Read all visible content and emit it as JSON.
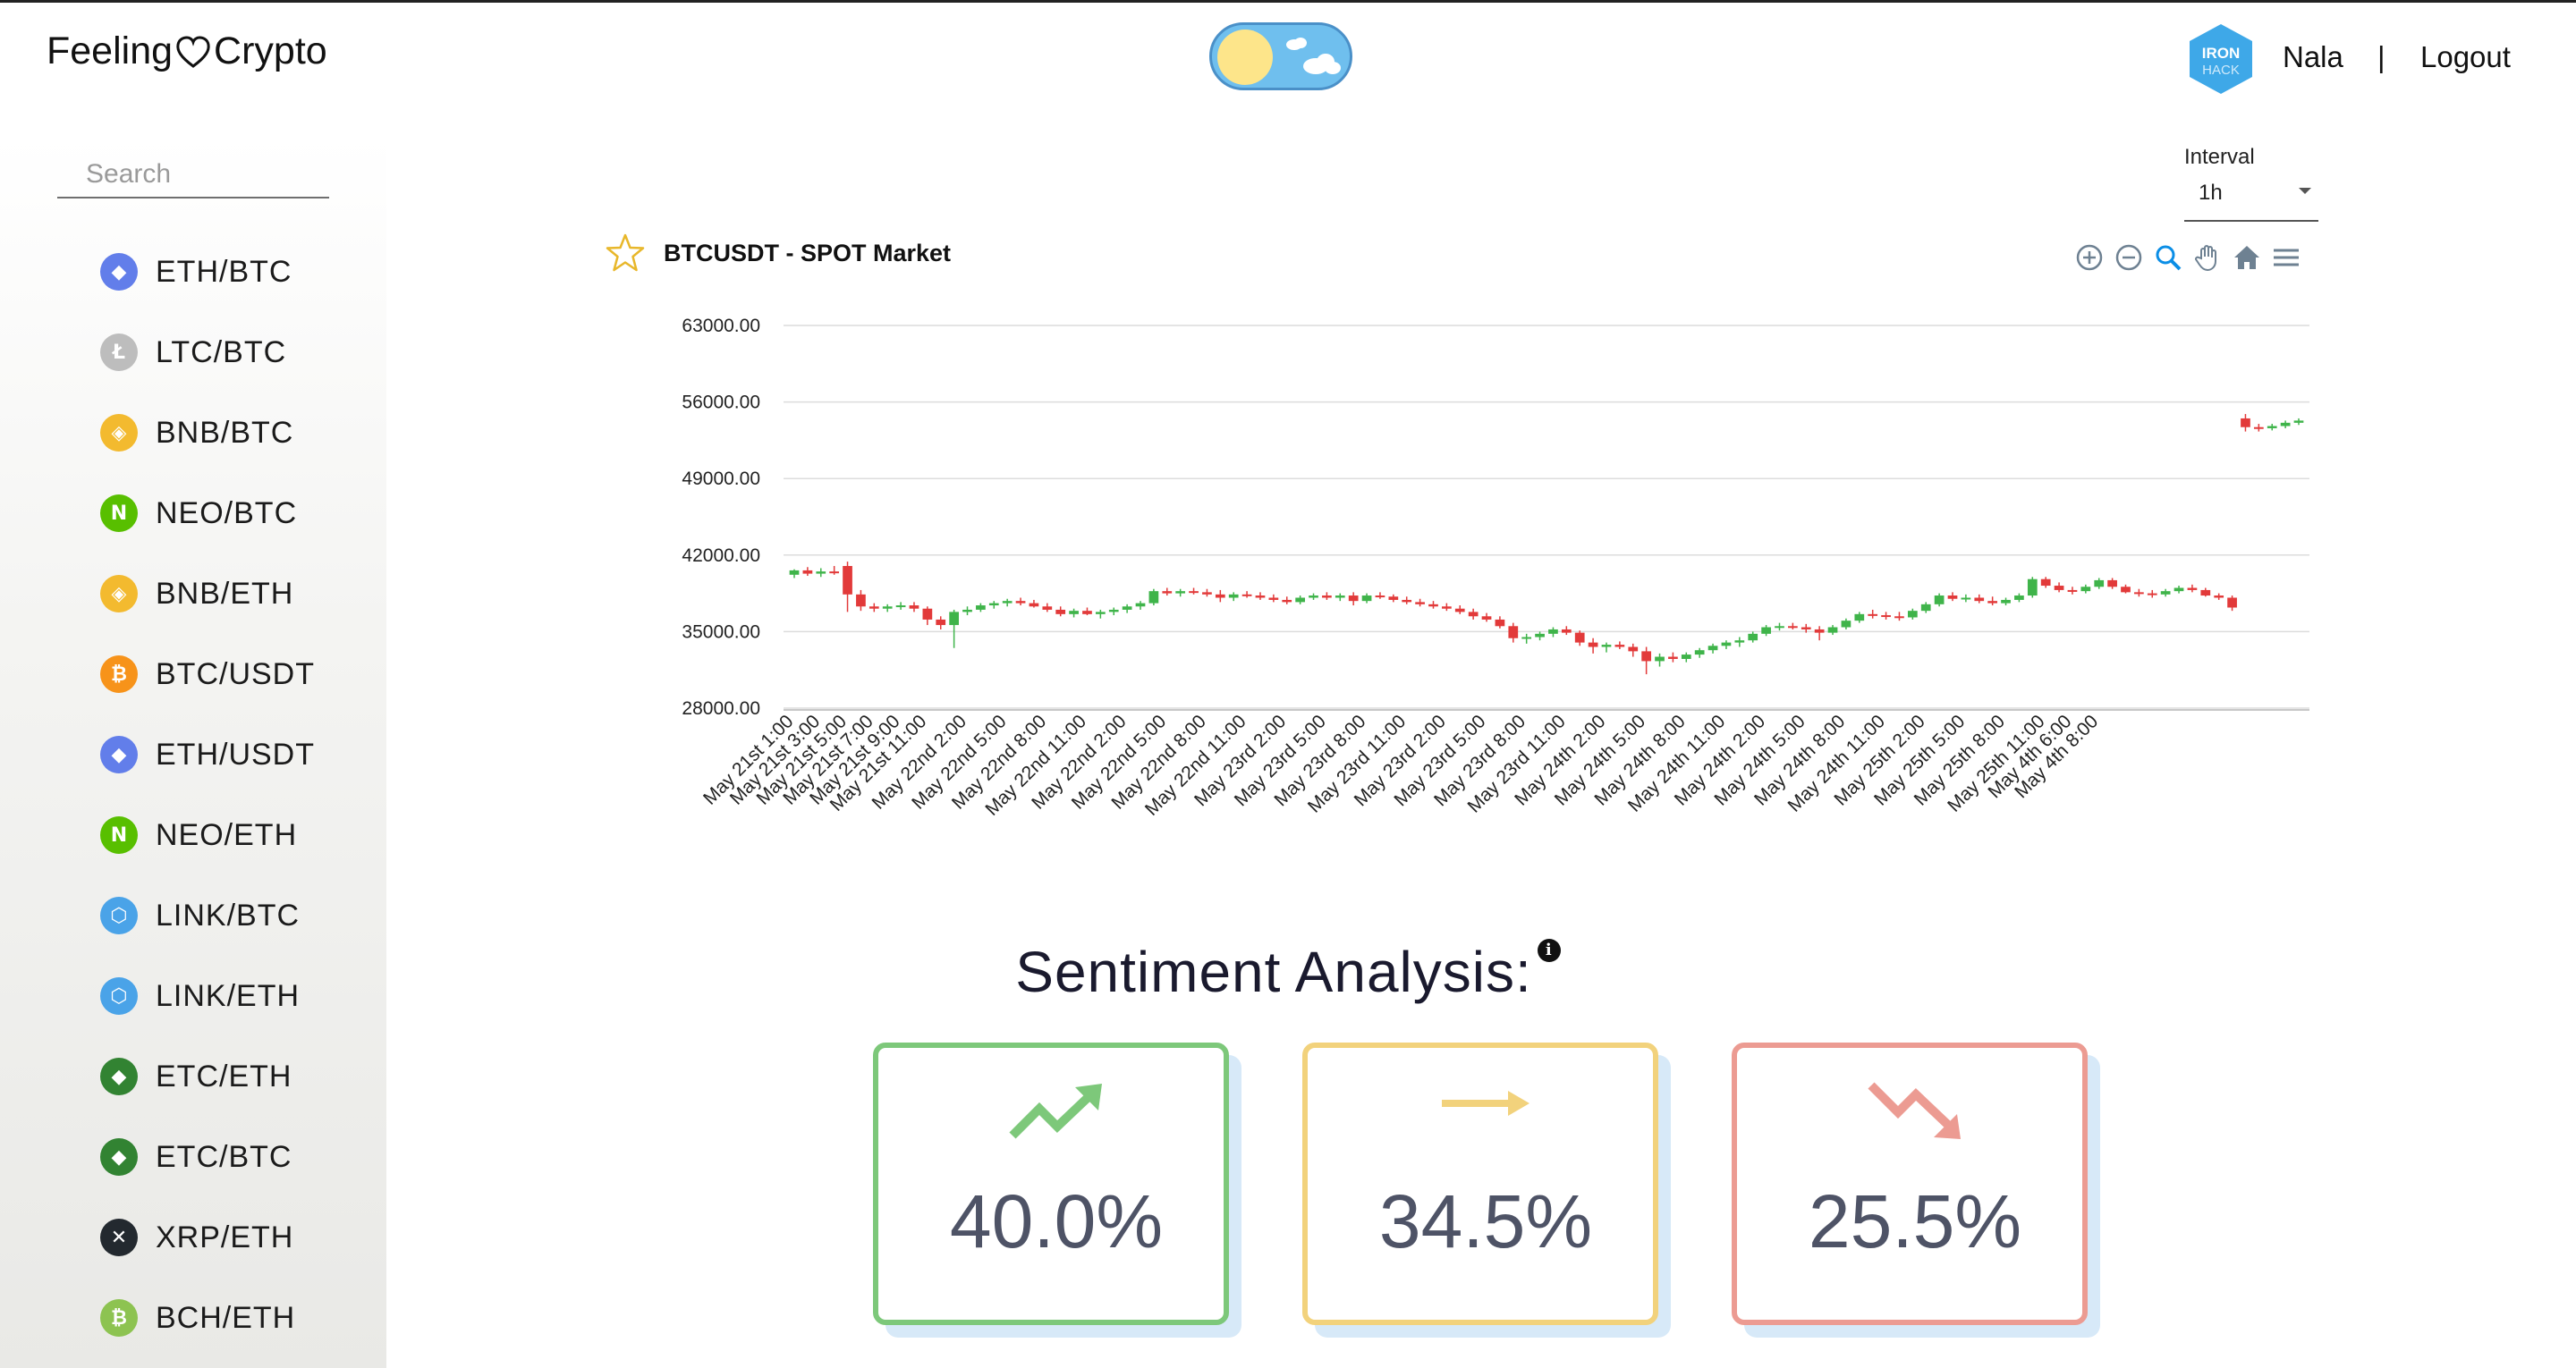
{
  "header": {
    "brand_left": "Feeling",
    "brand_right": "Crypto",
    "username": "Nala",
    "separator": "|",
    "logout": "Logout",
    "avatar_lines": [
      "IRON",
      "HACK"
    ]
  },
  "sidebar": {
    "search_placeholder": "Search",
    "pairs": [
      {
        "label": "ETH/BTC",
        "icon": "ethereum-icon",
        "color": "#627eea",
        "glyph": "◆"
      },
      {
        "label": "LTC/BTC",
        "icon": "litecoin-icon",
        "color": "#bdbdbd",
        "glyph": "Ł"
      },
      {
        "label": "BNB/BTC",
        "icon": "binance-icon",
        "color": "#f3ba2f",
        "glyph": "◈"
      },
      {
        "label": "NEO/BTC",
        "icon": "neo-icon",
        "color": "#58bf00",
        "glyph": "N"
      },
      {
        "label": "BNB/ETH",
        "icon": "binance-icon",
        "color": "#f3ba2f",
        "glyph": "◈"
      },
      {
        "label": "BTC/USDT",
        "icon": "bitcoin-icon",
        "color": "#f7931a",
        "glyph": "₿"
      },
      {
        "label": "ETH/USDT",
        "icon": "ethereum-icon",
        "color": "#627eea",
        "glyph": "◆"
      },
      {
        "label": "NEO/ETH",
        "icon": "neo-icon",
        "color": "#58bf00",
        "glyph": "N"
      },
      {
        "label": "LINK/BTC",
        "icon": "chainlink-icon",
        "color": "#4aa3e8",
        "glyph": "⬡"
      },
      {
        "label": "LINK/ETH",
        "icon": "chainlink-icon",
        "color": "#4aa3e8",
        "glyph": "⬡"
      },
      {
        "label": "ETC/ETH",
        "icon": "ethereum-classic-icon",
        "color": "#328332",
        "glyph": "◆"
      },
      {
        "label": "ETC/BTC",
        "icon": "ethereum-classic-icon",
        "color": "#328332",
        "glyph": "◆"
      },
      {
        "label": "XRP/ETH",
        "icon": "xrp-icon",
        "color": "#23292f",
        "glyph": "✕"
      },
      {
        "label": "BCH/ETH",
        "icon": "bitcoin-cash-icon",
        "color": "#8dc351",
        "glyph": "₿"
      }
    ]
  },
  "interval": {
    "label": "Interval",
    "value": "1h"
  },
  "chart": {
    "title": "BTCUSDT - SPOT Market"
  },
  "chart_data": {
    "type": "candlestick",
    "title": "BTCUSDT - SPOT Market",
    "ylim": [
      28000,
      63000
    ],
    "yticks": [
      "63000.00",
      "56000.00",
      "49000.00",
      "42000.00",
      "35000.00",
      "28000.00"
    ],
    "ytick_values": [
      63000,
      56000,
      49000,
      42000,
      35000,
      28000
    ],
    "xtick_labels": [
      "May 21st 1:00",
      "May 21st 3:00",
      "May 21st 5:00",
      "May 21st 7:00",
      "May 21st 9:00",
      "May 21st 11:00",
      "May 22nd 2:00",
      "May 22nd 5:00",
      "May 22nd 8:00",
      "May 22nd 11:00",
      "May 22nd 2:00",
      "May 22nd 5:00",
      "May 22nd 8:00",
      "May 22nd 11:00",
      "May 23rd 2:00",
      "May 23rd 5:00",
      "May 23rd 8:00",
      "May 23rd 11:00",
      "May 23rd 2:00",
      "May 23rd 5:00",
      "May 23rd 8:00",
      "May 23rd 11:00",
      "May 24th 2:00",
      "May 24th 5:00",
      "May 24th 8:00",
      "May 24th 11:00",
      "May 24th 2:00",
      "May 24th 5:00",
      "May 24th 8:00",
      "May 24th 11:00",
      "May 25th 2:00",
      "May 25th 5:00",
      "May 25th 8:00",
      "May 25th 11:00",
      "May 4th 6:00",
      "May 4th 8:00"
    ],
    "xtick_index": [
      0,
      2,
      4,
      6,
      8,
      10,
      13,
      16,
      19,
      22,
      25,
      28,
      31,
      34,
      37,
      40,
      43,
      46,
      49,
      52,
      55,
      58,
      61,
      64,
      67,
      70,
      73,
      76,
      79,
      82,
      85,
      88,
      91,
      94,
      96,
      98
    ],
    "ohlc": [
      [
        40200,
        40700,
        39900,
        40600
      ],
      [
        40600,
        40900,
        40100,
        40300
      ],
      [
        40300,
        40800,
        40000,
        40500
      ],
      [
        40500,
        41000,
        40200,
        40400
      ],
      [
        41000,
        41400,
        36800,
        38400
      ],
      [
        38400,
        38800,
        36900,
        37300
      ],
      [
        37300,
        37600,
        36800,
        37100
      ],
      [
        37100,
        37500,
        36800,
        37300
      ],
      [
        37300,
        37700,
        37000,
        37400
      ],
      [
        37400,
        37700,
        36800,
        37100
      ],
      [
        37100,
        37300,
        35600,
        36100
      ],
      [
        36100,
        36400,
        35200,
        35600
      ],
      [
        35600,
        37000,
        33500,
        36800
      ],
      [
        36800,
        37300,
        36500,
        37000
      ],
      [
        37000,
        37600,
        36800,
        37400
      ],
      [
        37400,
        37800,
        37100,
        37600
      ],
      [
        37600,
        38000,
        37300,
        37800
      ],
      [
        37800,
        38100,
        37400,
        37600
      ],
      [
        37600,
        37900,
        37200,
        37300
      ],
      [
        37300,
        37600,
        36800,
        37000
      ],
      [
        37000,
        37300,
        36400,
        36600
      ],
      [
        36600,
        37100,
        36300,
        36900
      ],
      [
        36900,
        37200,
        36500,
        36600
      ],
      [
        36600,
        37000,
        36200,
        36800
      ],
      [
        36800,
        37200,
        36500,
        37000
      ],
      [
        37000,
        37500,
        36700,
        37300
      ],
      [
        37300,
        37800,
        37000,
        37600
      ],
      [
        37600,
        38900,
        37400,
        38700
      ],
      [
        38700,
        39000,
        38300,
        38500
      ],
      [
        38500,
        38900,
        38200,
        38700
      ],
      [
        38700,
        39000,
        38400,
        38600
      ],
      [
        38600,
        38900,
        38200,
        38400
      ],
      [
        38400,
        38800,
        37700,
        38100
      ],
      [
        38100,
        38600,
        37800,
        38400
      ],
      [
        38400,
        38700,
        38100,
        38300
      ],
      [
        38300,
        38600,
        37900,
        38100
      ],
      [
        38100,
        38400,
        37700,
        37900
      ],
      [
        37900,
        38200,
        37500,
        37700
      ],
      [
        37700,
        38300,
        37500,
        38100
      ],
      [
        38100,
        38500,
        37900,
        38300
      ],
      [
        38300,
        38600,
        37900,
        38100
      ],
      [
        38100,
        38500,
        37800,
        38300
      ],
      [
        38300,
        38600,
        37400,
        37800
      ],
      [
        37800,
        38500,
        37600,
        38300
      ],
      [
        38300,
        38600,
        38000,
        38200
      ],
      [
        38200,
        38400,
        37700,
        37900
      ],
      [
        37900,
        38200,
        37500,
        37700
      ],
      [
        37700,
        38000,
        37300,
        37500
      ],
      [
        37500,
        37800,
        37100,
        37300
      ],
      [
        37300,
        37600,
        36900,
        37100
      ],
      [
        37100,
        37400,
        36600,
        36800
      ],
      [
        36800,
        37100,
        36100,
        36400
      ],
      [
        36400,
        36700,
        35900,
        36100
      ],
      [
        36100,
        36400,
        35300,
        35500
      ],
      [
        35500,
        35800,
        34000,
        34400
      ],
      [
        34400,
        34800,
        33900,
        34500
      ],
      [
        34500,
        35000,
        34200,
        34800
      ],
      [
        34800,
        35400,
        34500,
        35200
      ],
      [
        35200,
        35500,
        34700,
        34900
      ],
      [
        34900,
        35100,
        33700,
        34000
      ],
      [
        34000,
        34400,
        33000,
        33600
      ],
      [
        33600,
        34000,
        33100,
        33800
      ],
      [
        33800,
        34100,
        33400,
        33600
      ],
      [
        33600,
        33900,
        32700,
        33200
      ],
      [
        33200,
        33600,
        31100,
        32300
      ],
      [
        32300,
        33000,
        31800,
        32700
      ],
      [
        32700,
        33100,
        32200,
        32500
      ],
      [
        32500,
        33100,
        32200,
        32900
      ],
      [
        32900,
        33500,
        32600,
        33300
      ],
      [
        33300,
        33900,
        33000,
        33700
      ],
      [
        33700,
        34200,
        33400,
        34000
      ],
      [
        34000,
        34500,
        33600,
        34200
      ],
      [
        34200,
        35000,
        34000,
        34800
      ],
      [
        34800,
        35600,
        34600,
        35400
      ],
      [
        35400,
        35800,
        35100,
        35500
      ],
      [
        35500,
        35800,
        35200,
        35400
      ],
      [
        35400,
        35700,
        34900,
        35200
      ],
      [
        35200,
        35500,
        34200,
        34900
      ],
      [
        34900,
        35600,
        34700,
        35400
      ],
      [
        35400,
        36200,
        35200,
        36000
      ],
      [
        36000,
        36800,
        35800,
        36600
      ],
      [
        36600,
        37000,
        36200,
        36500
      ],
      [
        36500,
        36800,
        36100,
        36400
      ],
      [
        36400,
        36800,
        36000,
        36300
      ],
      [
        36300,
        37100,
        36100,
        36900
      ],
      [
        36900,
        37700,
        36700,
        37500
      ],
      [
        37500,
        38500,
        37300,
        38300
      ],
      [
        38300,
        38600,
        37800,
        38000
      ],
      [
        38000,
        38400,
        37700,
        38100
      ],
      [
        38100,
        38400,
        37600,
        37800
      ],
      [
        37800,
        38200,
        37400,
        37600
      ],
      [
        37600,
        38100,
        37400,
        37900
      ],
      [
        37900,
        38500,
        37700,
        38300
      ],
      [
        38300,
        40000,
        38100,
        39800
      ],
      [
        39800,
        40000,
        39000,
        39200
      ],
      [
        39200,
        39500,
        38600,
        38800
      ],
      [
        38800,
        39100,
        38400,
        38700
      ],
      [
        38700,
        39300,
        38500,
        39100
      ],
      [
        39100,
        39900,
        38900,
        39700
      ],
      [
        39700,
        39900,
        38900,
        39100
      ],
      [
        39100,
        39300,
        38500,
        38600
      ],
      [
        38600,
        38900,
        38200,
        38500
      ],
      [
        38500,
        38800,
        38100,
        38400
      ],
      [
        38400,
        38900,
        38200,
        38700
      ],
      [
        38700,
        39200,
        38500,
        39000
      ],
      [
        39000,
        39300,
        38600,
        38800
      ],
      [
        38800,
        39000,
        38200,
        38300
      ],
      [
        38300,
        38500,
        37900,
        38100
      ],
      [
        38100,
        38300,
        36900,
        37200
      ],
      [
        54500,
        54900,
        53300,
        53700
      ],
      [
        53700,
        54000,
        53300,
        53600
      ],
      [
        53600,
        54000,
        53400,
        53800
      ],
      [
        53800,
        54300,
        53600,
        54100
      ],
      [
        54100,
        54500,
        53900,
        54300
      ]
    ]
  },
  "sentiment": {
    "title": "Sentiment Analysis:",
    "info_glyph": "i",
    "positive": {
      "value": "40.0%",
      "color": "#7dc87a"
    },
    "neutral": {
      "value": "34.5%",
      "color": "#f2d27c"
    },
    "negative": {
      "value": "25.5%",
      "color": "#ec9b92"
    }
  }
}
